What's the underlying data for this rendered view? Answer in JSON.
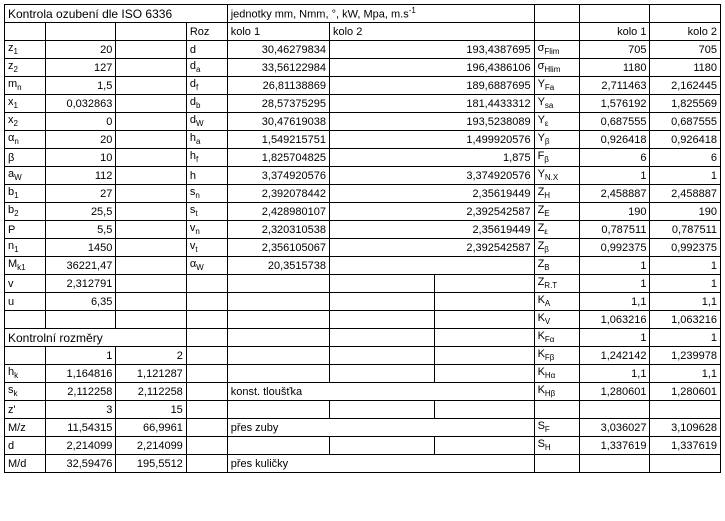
{
  "title": "Kontrola ozubení dle ISO 6336",
  "units_label": "jednotky  mm, Nmm, °, kW, Mpa, m.s",
  "roz": "Roz",
  "kolo1": "kolo 1",
  "kolo2": "kolo 2",
  "left": {
    "z1": {
      "sym": "z",
      "sub": "1",
      "v": "20"
    },
    "z2": {
      "sym": "z",
      "sub": "2",
      "v": "127"
    },
    "mn": {
      "sym": "m",
      "sub": "n",
      "v": "1,5"
    },
    "x1": {
      "sym": "x",
      "sub": "1",
      "v": "0,032863"
    },
    "x2": {
      "sym": "x",
      "sub": "2",
      "v": "0"
    },
    "an": {
      "sym": "α",
      "sub": "n",
      "v": "20"
    },
    "beta": {
      "sym": "β",
      "sub": "",
      "v": "10"
    },
    "aw": {
      "sym": "a",
      "sub": "W",
      "v": "112"
    },
    "b1": {
      "sym": "b",
      "sub": "1",
      "v": "27"
    },
    "b2": {
      "sym": "b",
      "sub": "2",
      "v": "25,5"
    },
    "P": {
      "sym": "P",
      "sub": "",
      "v": "5,5"
    },
    "n1": {
      "sym": "n",
      "sub": "1",
      "v": "1450"
    },
    "Mk1": {
      "sym": "M",
      "sub": "k1",
      "v": "36221,47"
    },
    "vvel": {
      "sym": "v",
      "sub": "",
      "v": "2,312791"
    },
    "u": {
      "sym": "u",
      "sub": "",
      "v": "6,35"
    }
  },
  "mid": {
    "d": {
      "sym": "d",
      "sub": "",
      "k1": "30,46279834",
      "k2": "193,4387695"
    },
    "da": {
      "sym": "d",
      "sub": "a",
      "k1": "33,56122984",
      "k2": "196,4386106"
    },
    "df": {
      "sym": "d",
      "sub": "f",
      "k1": "26,81138869",
      "k2": "189,6887695"
    },
    "db": {
      "sym": "d",
      "sub": "b",
      "k1": "28,57375295",
      "k2": "181,4433312"
    },
    "dw": {
      "sym": "d",
      "sub": "W",
      "k1": "30,47619038",
      "k2": "193,5238089"
    },
    "ha": {
      "sym": "h",
      "sub": "a",
      "k1": "1,549215751",
      "k2": "1,499920576"
    },
    "hf": {
      "sym": "h",
      "sub": "f",
      "k1": "1,825704825",
      "k2": "1,875"
    },
    "h": {
      "sym": "h",
      "sub": "",
      "k1": "3,374920576",
      "k2": "3,374920576"
    },
    "sn": {
      "sym": "s",
      "sub": "n",
      "k1": "2,392078442",
      "k2": "2,35619449"
    },
    "st": {
      "sym": "s",
      "sub": "t",
      "k1": "2,428980107",
      "k2": "2,392542587"
    },
    "vn": {
      "sym": "v",
      "sub": "n",
      "k1": "2,320310538",
      "k2": "2,35619449"
    },
    "vt": {
      "sym": "v",
      "sub": "t",
      "k1": "2,356105067",
      "k2": "2,392542587"
    },
    "aw": {
      "sym": "α",
      "sub": "W",
      "k1": "20,3515738",
      "k2": ""
    }
  },
  "right": {
    "sFlim": {
      "sym": "σ",
      "sub": "Flim",
      "k1": "705",
      "k2": "705"
    },
    "sHlim": {
      "sym": "σ",
      "sub": "Hlim",
      "k1": "1180",
      "k2": "1180"
    },
    "YFa": {
      "sym": "Y",
      "sub": "Fa",
      "k1": "2,711463",
      "k2": "2,162445"
    },
    "Ysa": {
      "sym": "Y",
      "sub": "sa",
      "k1": "1,576192",
      "k2": "1,825569"
    },
    "Yeps": {
      "sym": "Y",
      "sub": "ε",
      "k1": "0,687555",
      "k2": "0,687555"
    },
    "Ybeta": {
      "sym": "Y",
      "sub": "β",
      "k1": "0,926418",
      "k2": "0,926418"
    },
    "Fbeta": {
      "sym": "F",
      "sub": "β",
      "k1": "6",
      "k2": "6"
    },
    "YNX": {
      "sym": "Y",
      "sub": "N.X",
      "k1": "1",
      "k2": "1"
    },
    "ZH": {
      "sym": "Z",
      "sub": "H",
      "k1": "2,458887",
      "k2": "2,458887"
    },
    "ZE": {
      "sym": "Z",
      "sub": "E",
      "k1": "190",
      "k2": "190"
    },
    "Zeps": {
      "sym": "Z",
      "sub": "ε",
      "k1": "0,787511",
      "k2": "0,787511"
    },
    "Zbeta": {
      "sym": "Z",
      "sub": "β",
      "k1": "0,992375",
      "k2": "0,992375"
    },
    "ZB": {
      "sym": "Z",
      "sub": "B",
      "k1": "1",
      "k2": "1"
    },
    "ZRT": {
      "sym": "Z",
      "sub": "R.T",
      "k1": "1",
      "k2": "1"
    },
    "KA": {
      "sym": "K",
      "sub": "A",
      "k1": "1,1",
      "k2": "1,1"
    },
    "KV": {
      "sym": "K",
      "sub": "V",
      "k1": "1,063216",
      "k2": "1,063216"
    },
    "KFa": {
      "sym": "K",
      "sub": "Fα",
      "k1": "1",
      "k2": "1"
    },
    "KFb": {
      "sym": "K",
      "sub": "Fβ",
      "k1": "1,242142",
      "k2": "1,239978"
    },
    "KHa": {
      "sym": "K",
      "sub": "Hα",
      "k1": "1,1",
      "k2": "1,1"
    },
    "KHb": {
      "sym": "K",
      "sub": "Hβ",
      "k1": "1,280601",
      "k2": "1,280601"
    },
    "SF": {
      "sym": "S",
      "sub": "F",
      "k1": "3,036027",
      "k2": "3,109628"
    },
    "SH": {
      "sym": "S",
      "sub": "H",
      "k1": "1,337619",
      "k2": "1,337619"
    }
  },
  "kontrol_title": "Kontrolní rozměry",
  "kcol1": "1",
  "kcol2": "2",
  "krows": {
    "hk": {
      "sym": "h",
      "sub": "k",
      "a": "1,164816",
      "b": "1,121287"
    },
    "sk": {
      "sym": "s",
      "sub": "k",
      "a": "2,112258",
      "b": "2,112258",
      "note": "konst. tloušťka"
    },
    "zp": {
      "sym": "z'",
      "sub": "",
      "a": "3",
      "b": "15"
    },
    "Mz": {
      "sym": "M/z",
      "sub": "",
      "a": "11,54315",
      "b": "66,9961",
      "note": "přes zuby"
    },
    "d": {
      "sym": "d",
      "sub": "",
      "a": "2,214099",
      "b": "2,214099"
    },
    "Md": {
      "sym": "M/d",
      "sub": "",
      "a": "32,59476",
      "b": "195,5512",
      "note": "přes kuličky"
    }
  }
}
